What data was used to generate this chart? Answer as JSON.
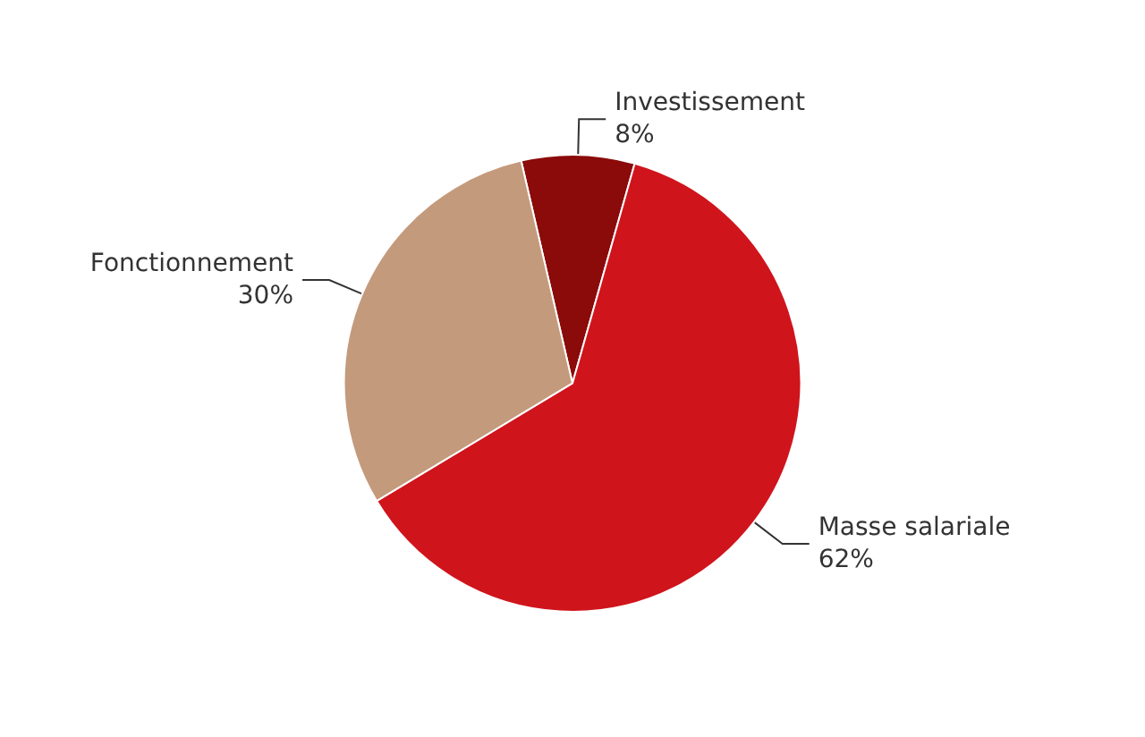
{
  "chart_data": {
    "type": "pie",
    "categories": [
      "Investissement",
      "Masse salariale",
      "Fonctionnement"
    ],
    "values": [
      8,
      62,
      30
    ],
    "colors": [
      "#8b0a0a",
      "#d0141c",
      "#c49a7c"
    ],
    "value_labels": [
      "8%",
      "62%",
      "30%"
    ],
    "legend": false
  }
}
